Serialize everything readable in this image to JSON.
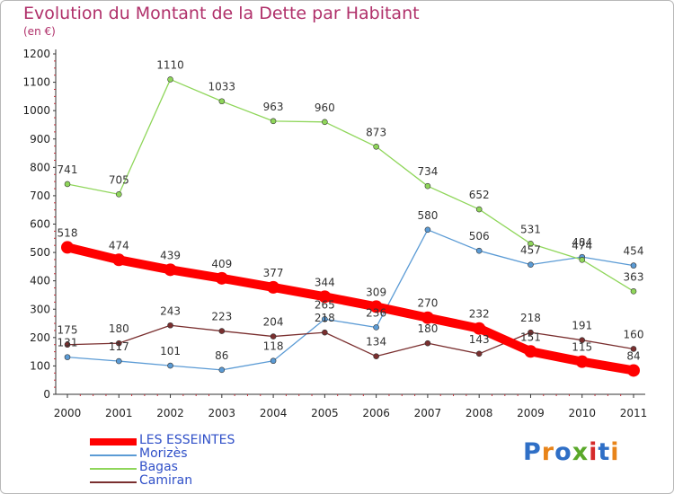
{
  "title": "Evolution du Montant de la Dette par Habitant",
  "subtitle": "(en €)",
  "logo": {
    "text": "Proxiti",
    "colors": [
      "#2f6fc6",
      "#e8841a",
      "#2f6fc6",
      "#5aa82a",
      "#d62a2a",
      "#2f6fc6",
      "#e8841a"
    ]
  },
  "chart_data": {
    "type": "line",
    "title": "Evolution du Montant de la Dette par Habitant",
    "subtitle": "(en €)",
    "x": [
      "2000",
      "2001",
      "2002",
      "2003",
      "2004",
      "2005",
      "2006",
      "2007",
      "2008",
      "2009",
      "2010",
      "2011"
    ],
    "ylim": [
      0,
      1200
    ],
    "yticks": [
      0,
      100,
      200,
      300,
      400,
      500,
      600,
      700,
      800,
      900,
      1000,
      1100,
      1200
    ],
    "grid": false,
    "legend_position": "bottom-left",
    "series": [
      {
        "name": "LES ESSEINTES",
        "color": "#ff0000",
        "values": [
          518,
          474,
          439,
          409,
          377,
          344,
          309,
          270,
          232,
          151,
          115,
          84
        ]
      },
      {
        "name": "Morizès",
        "color": "#5b9bd5",
        "values": [
          131,
          117,
          101,
          86,
          118,
          265,
          236,
          580,
          506,
          457,
          484,
          454
        ]
      },
      {
        "name": "Bagas",
        "color": "#8fd65a",
        "values": [
          741,
          705,
          1110,
          1033,
          963,
          960,
          873,
          734,
          652,
          531,
          474,
          363
        ]
      },
      {
        "name": "Camiran",
        "color": "#7a2f2f",
        "values": [
          175,
          180,
          243,
          223,
          204,
          218,
          134,
          180,
          143,
          218,
          191,
          160
        ]
      }
    ]
  }
}
